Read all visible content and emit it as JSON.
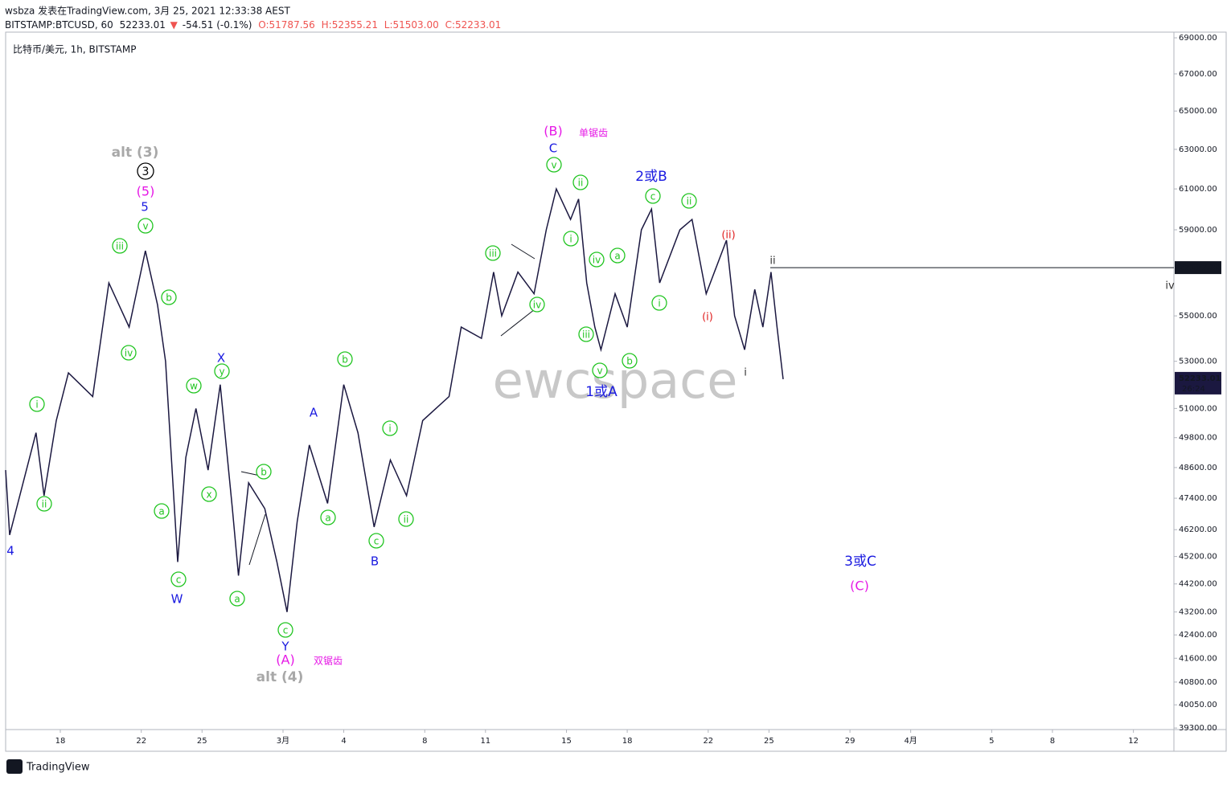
{
  "header": {
    "line1": "wsbza 发表在TradingView.com, 3月 25, 2021 12:33:38 AEST",
    "symbol": "BITSTAMP:BTCUSD, 60",
    "price": "52233.01",
    "arrow": "▼",
    "change": "-54.51 (-0.1%)",
    "open": "O:51787.56",
    "high": "H:52355.21",
    "low": "L:51503.00",
    "close": "C:52233.01"
  },
  "chart_data": {
    "type": "line",
    "title": "比特币/美元, 1h, BITSTAMP",
    "log_scale": true,
    "color": "#1b1840",
    "watermark": "ewcspace",
    "x": [
      15.3,
      15.5,
      16.8,
      17.2,
      17.8,
      18.4,
      19.6,
      20.4,
      21.4,
      22.2,
      22.8,
      23.2,
      23.6,
      23.8,
      24.2,
      24.7,
      25.3,
      25.9,
      26.5,
      26.8,
      27.3,
      28.1,
      28.7,
      29.2,
      29.7,
      30.3,
      31.2,
      32.0,
      32.7,
      33.5,
      34.3,
      35.1,
      35.9,
      37.2,
      37.8,
      38.8,
      39.4,
      39.8,
      40.6,
      41.4,
      42.0,
      42.5,
      43.2,
      43.6,
      44.0,
      44.4,
      44.7,
      45.4,
      46.0,
      46.7,
      47.2,
      47.6,
      48.6,
      49.2,
      49.9,
      50.9,
      51.3,
      51.8,
      52.3,
      52.7,
      53.1,
      53.4,
      53.7
    ],
    "values": [
      48500,
      46000,
      50000,
      47500,
      50500,
      52500,
      51500,
      56500,
      54500,
      58000,
      55500,
      53000,
      47500,
      45000,
      49000,
      51000,
      48500,
      52000,
      47000,
      44500,
      48000,
      47000,
      45000,
      43200,
      46500,
      49500,
      47200,
      52000,
      50000,
      46300,
      48900,
      47500,
      50500,
      51500,
      54500,
      54000,
      57000,
      55000,
      57000,
      56000,
      59000,
      61000,
      59500,
      60500,
      56500,
      54500,
      53500,
      56000,
      54500,
      59000,
      60000,
      56500,
      59000,
      59500,
      56000,
      58500,
      55000,
      53500,
      56200,
      54500,
      57000,
      54500,
      52233
    ],
    "xlim": [
      15.3,
      73
    ],
    "xticks": [
      {
        "value": 18,
        "label": "18"
      },
      {
        "value": 22,
        "label": "22"
      },
      {
        "value": 25,
        "label": "25"
      },
      {
        "value": 29,
        "label": "3月"
      },
      {
        "value": 32,
        "label": "4"
      },
      {
        "value": 36,
        "label": "8"
      },
      {
        "value": 39,
        "label": "11"
      },
      {
        "value": 43,
        "label": "15"
      },
      {
        "value": 46,
        "label": "18"
      },
      {
        "value": 50,
        "label": "22"
      },
      {
        "value": 53,
        "label": "25"
      },
      {
        "value": 57,
        "label": "29"
      },
      {
        "value": 60,
        "label": "4月"
      },
      {
        "value": 64,
        "label": "5"
      },
      {
        "value": 67,
        "label": "8"
      },
      {
        "value": 71,
        "label": "12"
      }
    ],
    "ylim": [
      39250,
      69320
    ],
    "yticks": [
      {
        "value": 69000,
        "label": "69000.00"
      },
      {
        "value": 67000,
        "label": "67000.00"
      },
      {
        "value": 65000,
        "label": "65000.00"
      },
      {
        "value": 63000,
        "label": "63000.00"
      },
      {
        "value": 61000,
        "label": "61000.00"
      },
      {
        "value": 59000,
        "label": "59000.00"
      },
      {
        "value": 55000,
        "label": "55000.00"
      },
      {
        "value": 53000,
        "label": "53000.00"
      },
      {
        "value": 51000,
        "label": "51000.00"
      },
      {
        "value": 49800,
        "label": "49800.00"
      },
      {
        "value": 48600,
        "label": "48600.00"
      },
      {
        "value": 47400,
        "label": "47400.00"
      },
      {
        "value": 46200,
        "label": "46200.00"
      },
      {
        "value": 45200,
        "label": "45200.00"
      },
      {
        "value": 44200,
        "label": "44200.00"
      },
      {
        "value": 43200,
        "label": "43200.00"
      },
      {
        "value": 42400,
        "label": "42400.00"
      },
      {
        "value": 41600,
        "label": "41600.00"
      },
      {
        "value": 40800,
        "label": "40800.00"
      },
      {
        "value": 40050,
        "label": "40050.00"
      },
      {
        "value": 39300,
        "label": "39300.00"
      }
    ],
    "price_line": {
      "value": 57207.33,
      "label": "57207.33"
    },
    "last_price": {
      "value": 52233.01,
      "label": "52233.01",
      "countdown": "26:24"
    },
    "annotations": [
      {
        "text": "i",
        "style": "green"
      },
      {
        "text": "ii",
        "style": "green"
      },
      {
        "text": "iii",
        "style": "green"
      },
      {
        "text": "iv",
        "style": "green"
      },
      {
        "text": "v",
        "style": "green"
      },
      {
        "text": "b",
        "style": "green"
      },
      {
        "text": "a",
        "style": "green"
      },
      {
        "text": "c",
        "style": "green"
      },
      {
        "text": "w",
        "style": "green"
      },
      {
        "text": "y",
        "style": "green"
      },
      {
        "text": "x",
        "style": "green"
      },
      {
        "text": "b",
        "style": "green"
      },
      {
        "text": "a",
        "style": "green"
      },
      {
        "text": "c",
        "style": "green"
      },
      {
        "text": "a",
        "style": "green"
      },
      {
        "text": "b",
        "style": "green"
      },
      {
        "text": "c",
        "style": "green"
      },
      {
        "text": "i",
        "style": "green"
      },
      {
        "text": "ii",
        "style": "green"
      },
      {
        "text": "iii",
        "style": "green"
      },
      {
        "text": "iv",
        "style": "green"
      },
      {
        "text": "v",
        "style": "green"
      },
      {
        "text": "ii",
        "style": "green"
      },
      {
        "text": "i",
        "style": "green"
      },
      {
        "text": "iv",
        "style": "green"
      },
      {
        "text": "a",
        "style": "green"
      },
      {
        "text": "iii",
        "style": "green"
      },
      {
        "text": "v",
        "style": "green"
      },
      {
        "text": "b",
        "style": "green"
      },
      {
        "text": "c",
        "style": "green"
      },
      {
        "text": "ii",
        "style": "green"
      },
      {
        "text": "i",
        "style": "green"
      },
      {
        "text": "4",
        "style": "blue"
      },
      {
        "text": "5",
        "style": "blue"
      },
      {
        "text": "W",
        "style": "blue"
      },
      {
        "text": "X",
        "style": "blue"
      },
      {
        "text": "Y",
        "style": "blue"
      },
      {
        "text": "A",
        "style": "blue"
      },
      {
        "text": "B",
        "style": "blue"
      },
      {
        "text": "C",
        "style": "blue"
      },
      {
        "text": "2或B",
        "style": "bigblue"
      },
      {
        "text": "1或A",
        "style": "bigblue"
      },
      {
        "text": "3或C",
        "style": "bigblue"
      },
      {
        "text": "(5)",
        "style": "magenta"
      },
      {
        "text": "(B)",
        "style": "magenta"
      },
      {
        "text": "单锯齿",
        "style": "smallmagenta"
      },
      {
        "text": "(A)",
        "style": "magenta"
      },
      {
        "text": "双锯齿",
        "style": "smallmagenta"
      },
      {
        "text": "(C)",
        "style": "magenta"
      },
      {
        "text": "alt (3)",
        "style": "gray"
      },
      {
        "text": "alt (4)",
        "style": "gray"
      },
      {
        "text": "3",
        "style": "black"
      },
      {
        "text": "(ii)",
        "style": "red"
      },
      {
        "text": "(i)",
        "style": "red"
      },
      {
        "text": "ii",
        "style": "dark"
      },
      {
        "text": "i",
        "style": "dark"
      },
      {
        "text": "iv",
        "style": "dark"
      }
    ]
  },
  "footer": {
    "brand": "TradingView"
  }
}
